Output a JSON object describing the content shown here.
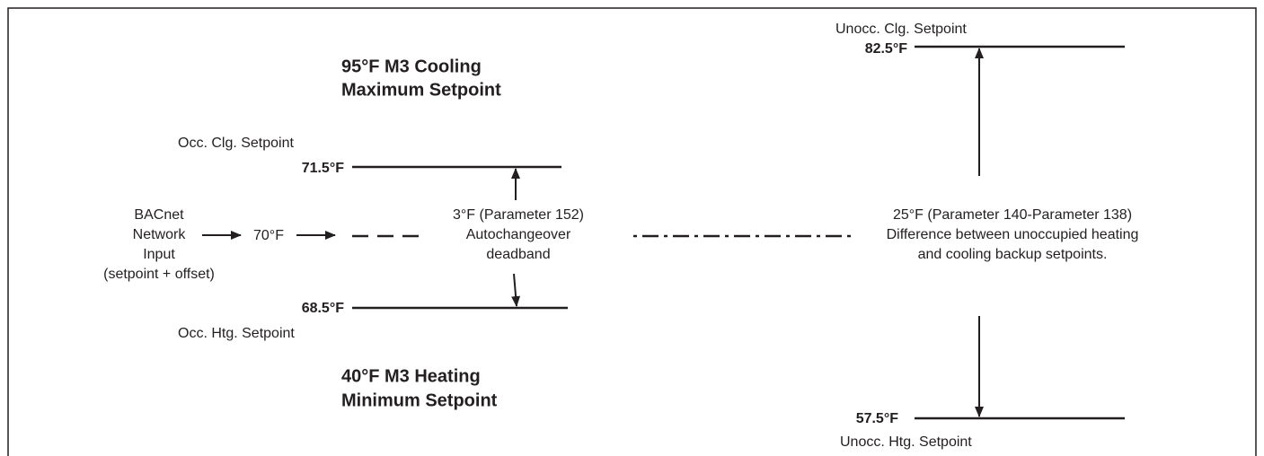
{
  "cooling_limit": {
    "lines": [
      "95°F M3 Cooling",
      "Maximum Setpoint"
    ]
  },
  "heating_limit": {
    "lines": [
      "40°F M3 Heating",
      "Minimum Setpoint"
    ]
  },
  "occupied_cooling": {
    "label": "Occ. Clg. Setpoint",
    "value": "71.5°F"
  },
  "occupied_heating": {
    "label": "Occ. Htg. Setpoint",
    "value": "68.5°F"
  },
  "input": {
    "lines": [
      "BACnet",
      "Network",
      "Input",
      "(setpoint + offset)"
    ],
    "value": "70°F"
  },
  "deadband": {
    "lines": [
      "3°F (Parameter 152)",
      "Autochangeover",
      "deadband"
    ]
  },
  "unoccupied_difference": {
    "lines": [
      "25°F (Parameter 140-Parameter 138)",
      "Difference between unoccupied heating",
      "and cooling backup setpoints."
    ]
  },
  "unoccupied_cooling": {
    "label": "Unocc. Clg. Setpoint",
    "value": "82.5°F"
  },
  "unoccupied_heating": {
    "label": "Unocc. Htg. Setpoint",
    "value": "57.5°F"
  }
}
